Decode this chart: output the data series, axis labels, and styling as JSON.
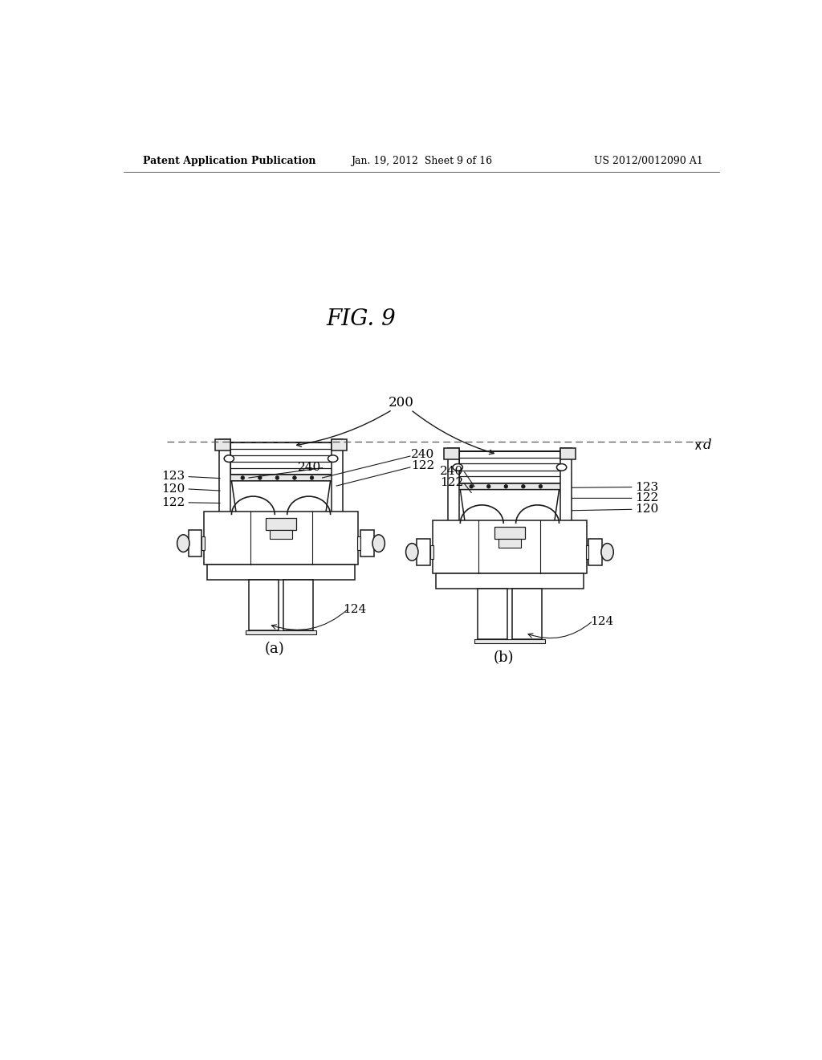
{
  "bg_color": "#ffffff",
  "header_left": "Patent Application Publication",
  "header_center": "Jan. 19, 2012  Sheet 9 of 16",
  "header_right": "US 2012/0012090 A1",
  "fig_label": "FIG. 9",
  "text_color": "#000000",
  "lc": "#1a1a1a",
  "fc_white": "#ffffff",
  "fc_light": "#e8e8e8",
  "fc_mid": "#cccccc",
  "fc_dark": "#888888"
}
